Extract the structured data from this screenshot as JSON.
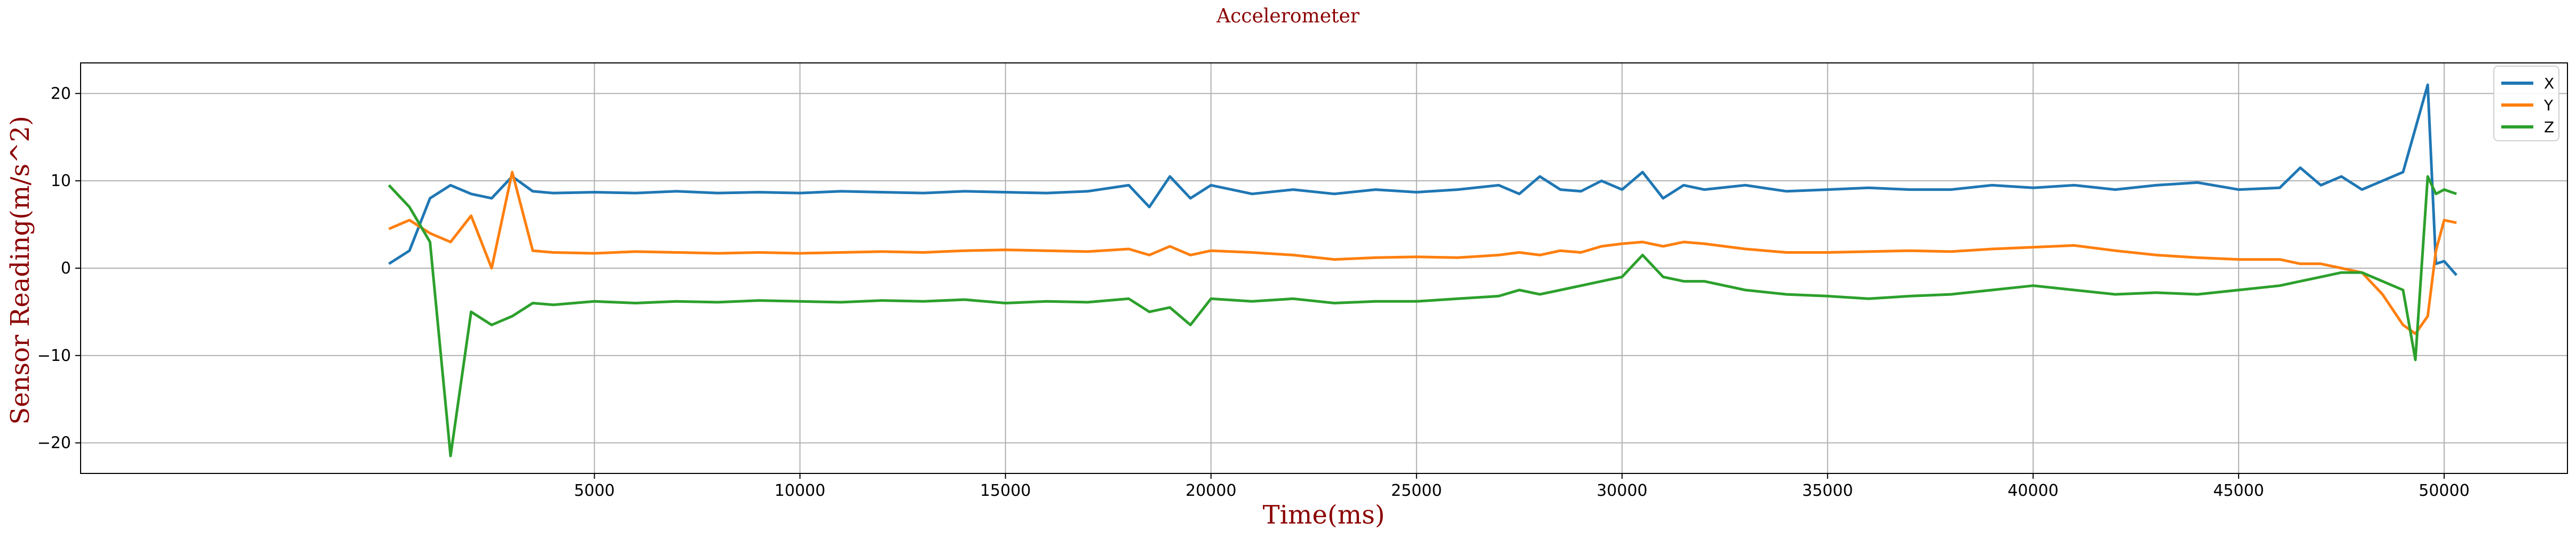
{
  "chart_data": {
    "type": "line",
    "title": "Accelerometer",
    "xlabel": "Time(ms)",
    "ylabel": "Sensor Reading(m/s^2)",
    "xlim": [
      -7500,
      53000
    ],
    "ylim": [
      -23.5,
      23.5
    ],
    "xticks": [
      5000,
      10000,
      15000,
      20000,
      25000,
      30000,
      35000,
      40000,
      45000,
      50000
    ],
    "yticks": [
      -20,
      -10,
      0,
      10,
      20
    ],
    "grid": true,
    "legend_position": "top-right",
    "x": [
      0,
      500,
      1000,
      1500,
      2000,
      2500,
      3000,
      3500,
      4000,
      5000,
      6000,
      7000,
      8000,
      9000,
      10000,
      11000,
      12000,
      13000,
      14000,
      15000,
      16000,
      17000,
      18000,
      18500,
      19000,
      19500,
      20000,
      21000,
      22000,
      23000,
      24000,
      25000,
      26000,
      27000,
      27500,
      28000,
      28500,
      29000,
      29500,
      30000,
      30500,
      31000,
      31500,
      32000,
      33000,
      34000,
      35000,
      36000,
      37000,
      38000,
      39000,
      40000,
      41000,
      42000,
      43000,
      44000,
      45000,
      46000,
      46500,
      47000,
      47500,
      48000,
      48500,
      49000,
      49300,
      49600,
      49800,
      50000,
      50300
    ],
    "series": [
      {
        "name": "X",
        "color": "#1f77b4",
        "values": [
          0.5,
          2.0,
          8.0,
          9.5,
          8.5,
          8.0,
          10.5,
          8.8,
          8.6,
          8.7,
          8.6,
          8.8,
          8.6,
          8.7,
          8.6,
          8.8,
          8.7,
          8.6,
          8.8,
          8.7,
          8.6,
          8.8,
          9.5,
          7.0,
          10.5,
          8.0,
          9.5,
          8.5,
          9.0,
          8.5,
          9.0,
          8.7,
          9.0,
          9.5,
          8.5,
          10.5,
          9.0,
          8.8,
          10.0,
          9.0,
          11.0,
          8.0,
          9.5,
          9.0,
          9.5,
          8.8,
          9.0,
          9.2,
          9.0,
          9.0,
          9.5,
          9.2,
          9.5,
          9.0,
          9.5,
          9.8,
          9.0,
          9.2,
          11.5,
          9.5,
          10.5,
          9.0,
          10.0,
          11.0,
          16.0,
          21.0,
          0.5,
          0.8,
          -0.8
        ]
      },
      {
        "name": "Y",
        "color": "#ff7f0e",
        "values": [
          4.5,
          5.5,
          4.0,
          3.0,
          6.0,
          0.0,
          11.0,
          2.0,
          1.8,
          1.7,
          1.9,
          1.8,
          1.7,
          1.8,
          1.7,
          1.8,
          1.9,
          1.8,
          2.0,
          2.1,
          2.0,
          1.9,
          2.2,
          1.5,
          2.5,
          1.5,
          2.0,
          1.8,
          1.5,
          1.0,
          1.2,
          1.3,
          1.2,
          1.5,
          1.8,
          1.5,
          2.0,
          1.8,
          2.5,
          2.8,
          3.0,
          2.5,
          3.0,
          2.8,
          2.2,
          1.8,
          1.8,
          1.9,
          2.0,
          1.9,
          2.2,
          2.4,
          2.6,
          2.0,
          1.5,
          1.2,
          1.0,
          1.0,
          0.5,
          0.5,
          0.0,
          -0.5,
          -3.0,
          -6.5,
          -7.5,
          -5.5,
          2.0,
          5.5,
          5.2
        ]
      },
      {
        "name": "Z",
        "color": "#2ca02c",
        "values": [
          9.5,
          7.0,
          3.0,
          -21.5,
          -5.0,
          -6.5,
          -5.5,
          -4.0,
          -4.2,
          -3.8,
          -4.0,
          -3.8,
          -3.9,
          -3.7,
          -3.8,
          -3.9,
          -3.7,
          -3.8,
          -3.6,
          -4.0,
          -3.8,
          -3.9,
          -3.5,
          -5.0,
          -4.5,
          -6.5,
          -3.5,
          -3.8,
          -3.5,
          -4.0,
          -3.8,
          -3.8,
          -3.5,
          -3.2,
          -2.5,
          -3.0,
          -2.5,
          -2.0,
          -1.5,
          -1.0,
          1.5,
          -1.0,
          -1.5,
          -1.5,
          -2.5,
          -3.0,
          -3.2,
          -3.5,
          -3.2,
          -3.0,
          -2.5,
          -2.0,
          -2.5,
          -3.0,
          -2.8,
          -3.0,
          -2.5,
          -2.0,
          -1.5,
          -1.0,
          -0.5,
          -0.5,
          -1.5,
          -2.5,
          -10.5,
          10.5,
          8.5,
          9.0,
          8.5
        ]
      }
    ]
  }
}
